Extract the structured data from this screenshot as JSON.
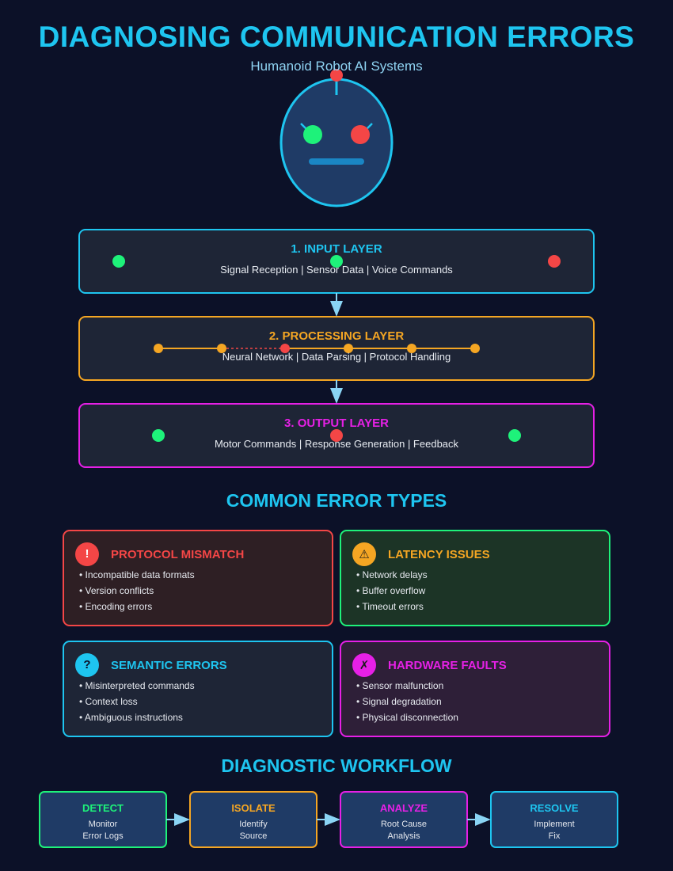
{
  "title": "DIAGNOSING COMMUNICATION ERRORS",
  "subtitle": "Humanoid Robot AI Systems",
  "colors": {
    "background": "#0c1128",
    "cyan": "#1ec5f0",
    "orange": "#f5a623",
    "magenta": "#e620e6",
    "red": "#f44646",
    "green": "#1ef27a"
  },
  "layers": [
    {
      "title": "1. INPUT LAYER",
      "description": "Signal Reception | Sensor Data | Voice Commands"
    },
    {
      "title": "2. PROCESSING LAYER",
      "description": "Neural Network | Data Parsing | Protocol Handling"
    },
    {
      "title": "3. OUTPUT LAYER",
      "description": "Motor Commands | Response Generation | Feedback"
    }
  ],
  "error_section_title": "COMMON ERROR TYPES",
  "errors": [
    {
      "icon": "!",
      "icon_name": "exclamation-icon",
      "title": "PROTOCOL MISMATCH",
      "items": [
        "• Incompatible data formats",
        "• Version conflicts",
        "• Encoding errors"
      ]
    },
    {
      "icon": "⚠",
      "icon_name": "warning-icon",
      "title": "LATENCY ISSUES",
      "items": [
        "• Network delays",
        "• Buffer overflow",
        "• Timeout errors"
      ]
    },
    {
      "icon": "?",
      "icon_name": "question-icon",
      "title": "SEMANTIC ERRORS",
      "items": [
        "• Misinterpreted commands",
        "• Context loss",
        "• Ambiguous instructions"
      ]
    },
    {
      "icon": "✗",
      "icon_name": "cross-icon",
      "title": "HARDWARE FAULTS",
      "items": [
        "• Sensor malfunction",
        "• Signal degradation",
        "• Physical disconnection"
      ]
    }
  ],
  "workflow_title": "DIAGNOSTIC WORKFLOW",
  "workflow": [
    {
      "title": "DETECT",
      "line1": "Monitor",
      "line2": "Error Logs"
    },
    {
      "title": "ISOLATE",
      "line1": "Identify",
      "line2": "Source"
    },
    {
      "title": "ANALYZE",
      "line1": "Root Cause",
      "line2": "Analysis"
    },
    {
      "title": "RESOLVE",
      "line1": "Implement",
      "line2": "Fix"
    }
  ]
}
